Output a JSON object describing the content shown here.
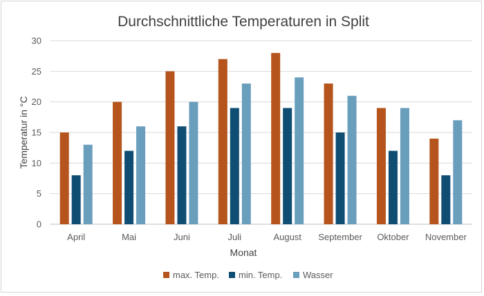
{
  "chart_data": {
    "type": "bar",
    "title": "Durchschnittliche Temperaturen in Split",
    "xlabel": "Monat",
    "ylabel": "Temperatur in °C",
    "ylim": [
      0,
      30
    ],
    "yticks": [
      0,
      5,
      10,
      15,
      20,
      25,
      30
    ],
    "grid": true,
    "legend_position": "bottom",
    "categories": [
      "April",
      "Mai",
      "Juni",
      "Juli",
      "August",
      "September",
      "Oktober",
      "November"
    ],
    "series": [
      {
        "name": "max. Temp.",
        "color": "#b5541c",
        "values": [
          15,
          20,
          25,
          27,
          28,
          23,
          19,
          14
        ]
      },
      {
        "name": "min. Temp.",
        "color": "#0f4d73",
        "values": [
          8,
          12,
          16,
          19,
          19,
          15,
          12,
          8
        ]
      },
      {
        "name": "Wasser",
        "color": "#6a9ebd",
        "values": [
          13,
          16,
          20,
          23,
          24,
          21,
          19,
          17
        ]
      }
    ]
  }
}
